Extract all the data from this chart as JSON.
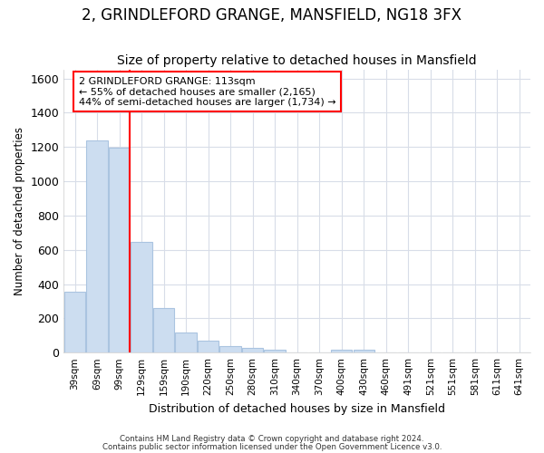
{
  "title": "2, GRINDLEFORD GRANGE, MANSFIELD, NG18 3FX",
  "subtitle": "Size of property relative to detached houses in Mansfield",
  "xlabel": "Distribution of detached houses by size in Mansfield",
  "ylabel": "Number of detached properties",
  "categories": [
    "39sqm",
    "69sqm",
    "99sqm",
    "129sqm",
    "159sqm",
    "190sqm",
    "220sqm",
    "250sqm",
    "280sqm",
    "310sqm",
    "340sqm",
    "370sqm",
    "400sqm",
    "430sqm",
    "460sqm",
    "491sqm",
    "521sqm",
    "551sqm",
    "581sqm",
    "611sqm",
    "641sqm"
  ],
  "values": [
    355,
    1240,
    1195,
    645,
    262,
    115,
    70,
    38,
    25,
    18,
    0,
    0,
    18,
    15,
    0,
    0,
    0,
    0,
    0,
    0,
    0
  ],
  "bar_color": "#ccddf0",
  "bar_edge_color": "#aac4e0",
  "red_line_index": 2,
  "property_name": "2 GRINDLEFORD GRANGE: 113sqm",
  "annotation_line1": "← 55% of detached houses are smaller (2,165)",
  "annotation_line2": "44% of semi-detached houses are larger (1,734) →",
  "ylim": [
    0,
    1650
  ],
  "yticks": [
    0,
    200,
    400,
    600,
    800,
    1000,
    1200,
    1400,
    1600
  ],
  "footer1": "Contains HM Land Registry data © Crown copyright and database right 2024.",
  "footer2": "Contains public sector information licensed under the Open Government Licence v3.0.",
  "bg_color": "#ffffff",
  "plot_bg_color": "#ffffff",
  "grid_color": "#d8dde8",
  "title_fontsize": 12,
  "subtitle_fontsize": 10
}
